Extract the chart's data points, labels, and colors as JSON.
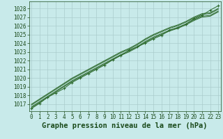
{
  "title": "Graphe pression niveau de la mer (hPa)",
  "x_hours": [
    0,
    1,
    2,
    3,
    4,
    5,
    6,
    7,
    8,
    9,
    10,
    11,
    12,
    13,
    14,
    15,
    16,
    17,
    18,
    19,
    20,
    21,
    22,
    23
  ],
  "series": [
    [
      1016.5,
      1017.1,
      1017.8,
      1018.3,
      1018.8,
      1019.5,
      1020.0,
      1020.5,
      1021.0,
      1021.5,
      1022.1,
      1022.6,
      1023.2,
      1023.6,
      1024.0,
      1024.5,
      1024.9,
      1025.5,
      1025.8,
      1026.2,
      1026.8,
      1027.2,
      1027.8,
      1028.3
    ],
    [
      1016.9,
      1017.5,
      1018.1,
      1018.7,
      1019.3,
      1019.9,
      1020.4,
      1020.9,
      1021.4,
      1021.9,
      1022.4,
      1022.9,
      1023.3,
      1023.8,
      1024.4,
      1024.9,
      1025.3,
      1025.7,
      1026.0,
      1026.4,
      1026.9,
      1027.3,
      1027.4,
      1027.9
    ],
    [
      1017.0,
      1017.6,
      1018.2,
      1018.8,
      1019.4,
      1020.0,
      1020.5,
      1021.0,
      1021.5,
      1022.0,
      1022.5,
      1023.0,
      1023.4,
      1023.9,
      1024.5,
      1025.0,
      1025.4,
      1025.8,
      1026.1,
      1026.5,
      1027.0,
      1027.4,
      1027.5,
      1028.0
    ],
    [
      1016.7,
      1017.3,
      1017.9,
      1018.5,
      1019.1,
      1019.7,
      1020.2,
      1020.7,
      1021.2,
      1021.7,
      1022.2,
      1022.7,
      1023.1,
      1023.6,
      1024.2,
      1024.7,
      1025.1,
      1025.5,
      1025.8,
      1026.2,
      1026.7,
      1027.1,
      1027.2,
      1027.7
    ],
    [
      1016.6,
      1017.2,
      1017.8,
      1018.4,
      1019.0,
      1019.6,
      1020.1,
      1020.6,
      1021.1,
      1021.6,
      1022.1,
      1022.6,
      1023.0,
      1023.5,
      1024.1,
      1024.6,
      1025.0,
      1025.4,
      1025.7,
      1026.1,
      1026.6,
      1027.0,
      1027.1,
      1027.6
    ]
  ],
  "marker_series_idx": 0,
  "line_color": "#2d6a2d",
  "marker_color": "#2d6a2d",
  "bg_color": "#c8eaea",
  "grid_color": "#aacccc",
  "text_color": "#1a4a1a",
  "ylim": [
    1016.2,
    1028.8
  ],
  "yticks": [
    1017,
    1018,
    1019,
    1020,
    1021,
    1022,
    1023,
    1024,
    1025,
    1026,
    1027,
    1028
  ],
  "tick_fontsize": 5.5,
  "xlabel_fontsize": 7.5
}
